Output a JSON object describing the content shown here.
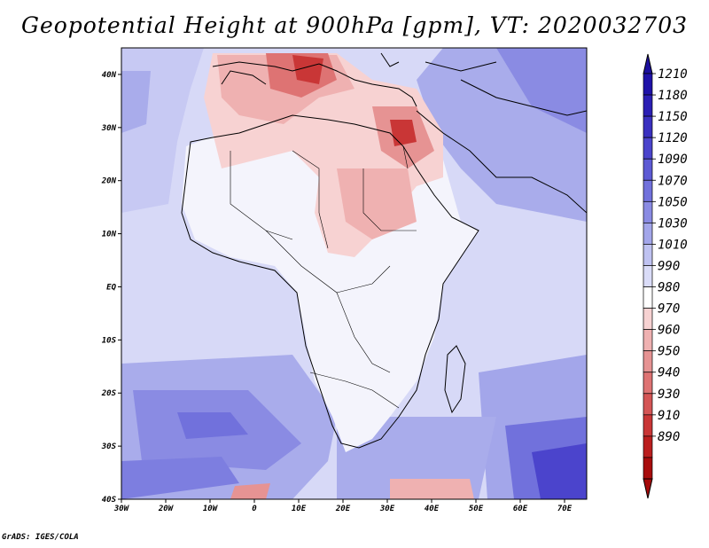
{
  "title": "Geopotential Height at 900hPa [gpm], VT: 2020032703",
  "credit": "GrADS: IGES/COLA",
  "map": {
    "x_ticks": [
      "30W",
      "20W",
      "10W",
      "0",
      "10E",
      "20E",
      "30E",
      "40E",
      "50E",
      "60E",
      "70E"
    ],
    "y_ticks": [
      "40N",
      "30N",
      "20N",
      "10N",
      "EQ",
      "10S",
      "20S",
      "30S",
      "40S"
    ],
    "lon_range": [
      -30,
      75
    ],
    "lat_range": [
      -40,
      45
    ]
  },
  "colorbar": {
    "labels": [
      "1210",
      "1180",
      "1150",
      "1120",
      "1090",
      "1070",
      "1050",
      "1030",
      "1010",
      "990",
      "980",
      "970",
      "960",
      "950",
      "940",
      "930",
      "910",
      "890"
    ],
    "colors": [
      "#1f12a8",
      "#2b1fb4",
      "#3a30c0",
      "#4b44cc",
      "#5d5ad4",
      "#7171dc",
      "#8a8be3",
      "#a3a6ea",
      "#bfc2f1",
      "#dadcf8",
      "#ffffff",
      "#f7d2d2",
      "#efb1b1",
      "#e69393",
      "#de7373",
      "#d45555",
      "#c93636",
      "#bb1e1e",
      "#a80d0d"
    ],
    "arrow_top_color": "#1c0f9e",
    "arrow_bottom_color": "#a50a0a"
  }
}
